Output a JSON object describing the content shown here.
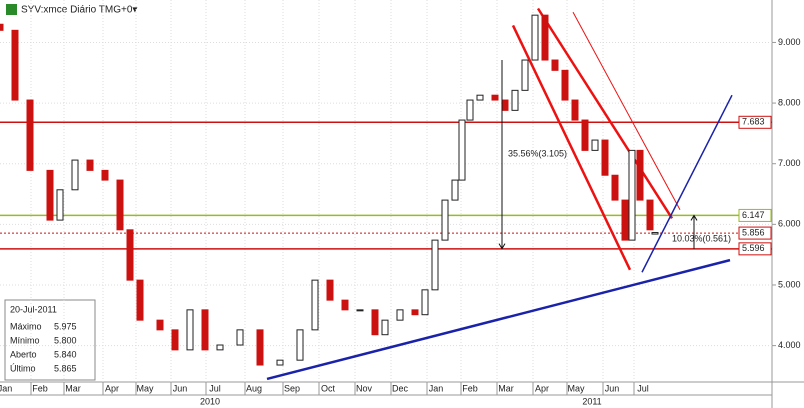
{
  "chart_data": {
    "type": "candlestick",
    "title": "SYV:xmce Diário TMG+0▾",
    "x": [
      0,
      15,
      30,
      50,
      60,
      75,
      90,
      105,
      120,
      130,
      140,
      160,
      175,
      190,
      205,
      220,
      240,
      260,
      280,
      300,
      315,
      330,
      345,
      360,
      375,
      385,
      400,
      415,
      425,
      435,
      445,
      455,
      462,
      470,
      480,
      495,
      505,
      515,
      525,
      535,
      545,
      555,
      565,
      575,
      585,
      595,
      605,
      615,
      625,
      632,
      640,
      650,
      655
    ],
    "open": [
      9.3,
      9.2,
      8.05,
      6.89,
      6.07,
      6.57,
      7.06,
      6.89,
      6.73,
      5.91,
      5.08,
      4.42,
      4.26,
      3.93,
      4.59,
      3.93,
      4.01,
      4.26,
      3.68,
      3.76,
      4.26,
      5.08,
      4.75,
      4.59,
      4.59,
      4.18,
      4.42,
      4.59,
      4.51,
      4.92,
      5.74,
      6.4,
      6.73,
      7.72,
      8.05,
      8.13,
      8.05,
      7.88,
      8.21,
      8.71,
      9.45,
      8.71,
      8.54,
      8.05,
      7.72,
      7.22,
      7.39,
      6.81,
      6.4,
      5.74,
      7.22,
      6.4,
      5.84
    ],
    "close": [
      9.2,
      8.05,
      6.89,
      6.07,
      6.57,
      7.06,
      6.89,
      6.73,
      5.91,
      5.08,
      4.42,
      4.26,
      3.93,
      4.59,
      3.93,
      4.01,
      4.26,
      3.68,
      3.76,
      4.26,
      5.08,
      4.75,
      4.59,
      4.59,
      4.18,
      4.42,
      4.59,
      4.51,
      4.92,
      5.74,
      6.4,
      6.73,
      7.72,
      8.05,
      8.13,
      8.05,
      7.88,
      8.21,
      8.71,
      9.45,
      8.71,
      8.54,
      8.05,
      7.72,
      7.22,
      7.39,
      6.81,
      6.4,
      5.74,
      7.22,
      6.4,
      5.91,
      5.865
    ],
    "up_color": "#222222",
    "down_color": "#cc1111",
    "xlim": [
      0,
      772
    ],
    "ylim": [
      3.4,
      9.7
    ],
    "yticks": [
      {
        "value": 4,
        "label": "4.000"
      },
      {
        "value": 5,
        "label": "5.000"
      },
      {
        "value": 6,
        "label": "6.000"
      },
      {
        "value": 7,
        "label": "7.000"
      },
      {
        "value": 8,
        "label": "8.000"
      },
      {
        "value": 9,
        "label": "9.000"
      }
    ],
    "xticks": [
      {
        "value": 5,
        "label": "Jan"
      },
      {
        "value": 40,
        "label": "Feb"
      },
      {
        "value": 73,
        "label": "Mar"
      },
      {
        "value": 112,
        "label": "Apr"
      },
      {
        "value": 145,
        "label": "May"
      },
      {
        "value": 180,
        "label": "Jun"
      },
      {
        "value": 215,
        "label": "Jul"
      },
      {
        "value": 254,
        "label": "Aug"
      },
      {
        "value": 292,
        "label": "Sep"
      },
      {
        "value": 328,
        "label": "Oct"
      },
      {
        "value": 364,
        "label": "Nov"
      },
      {
        "value": 400,
        "label": "Dec"
      },
      {
        "value": 436,
        "label": "Jan"
      },
      {
        "value": 470,
        "label": "Feb"
      },
      {
        "value": 506,
        "label": "Mar"
      },
      {
        "value": 542,
        "label": "Apr"
      },
      {
        "value": 576,
        "label": "May"
      },
      {
        "value": 612,
        "label": "Jun"
      },
      {
        "value": 643,
        "label": "Jul"
      }
    ],
    "years": [
      {
        "value": 210,
        "label": "2010"
      },
      {
        "value": 592,
        "label": "2011"
      }
    ],
    "grid": true,
    "levels": [
      {
        "value": 7.683,
        "color": "#cc1111"
      },
      {
        "value": 6.147,
        "color": "#99bb22"
      },
      {
        "value": 5.856,
        "color": "#cc1111",
        "dashed": true
      },
      {
        "value": 5.596,
        "color": "#cc1111"
      }
    ],
    "trendlines": [
      {
        "x": [
          513,
          630
        ],
        "y": [
          9.28,
          5.25
        ],
        "color": "#ee1111",
        "width": 2.5
      },
      {
        "x": [
          538,
          672
        ],
        "y": [
          9.56,
          6.1
        ],
        "color": "#ee1111",
        "width": 2.5
      },
      {
        "x": [
          573,
          680
        ],
        "y": [
          9.5,
          6.24
        ],
        "color": "#ee1111",
        "width": 1
      },
      {
        "x": [
          267,
          730
        ],
        "y": [
          3.45,
          5.41
        ],
        "color": "#1a22aa",
        "width": 2.5
      },
      {
        "x": [
          642,
          732
        ],
        "y": [
          5.21,
          8.13
        ],
        "color": "#1a22aa",
        "width": 1.5
      }
    ],
    "measures": [
      {
        "x": 502,
        "y": [
          8.71,
          5.6
        ],
        "label": "35.56%(3.105)"
      },
      {
        "x": 694,
        "y": [
          5.596,
          6.147
        ],
        "label": "10.03%(0.561)"
      }
    ],
    "info": {
      "date": "20-Jul-2011",
      "rows": [
        [
          "Máximo",
          "5.975"
        ],
        [
          "Mínimo",
          "5.800"
        ],
        [
          "Aberto",
          "5.840"
        ],
        [
          "Último",
          "5.865"
        ]
      ]
    }
  }
}
